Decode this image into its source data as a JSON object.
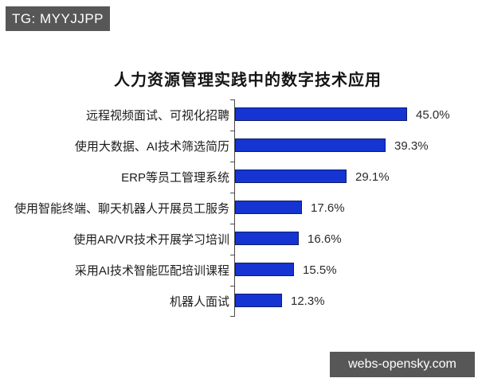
{
  "badges": {
    "top": "TG: MYYJJPP",
    "bottom": "webs-opensky.com"
  },
  "chart_data": {
    "type": "bar",
    "orientation": "horizontal",
    "title": "人力资源管理实践中的数字技术应用",
    "categories": [
      "远程视频面试、可视化招聘",
      "使用大数据、AI技术筛选简历",
      "ERP等员工管理系统",
      "使用智能终端、聊天机器人开展员工服务",
      "使用AR/VR技术开展学习培训",
      "采用AI技术智能匹配培训课程",
      "机器人面试"
    ],
    "values": [
      45.0,
      39.3,
      29.1,
      17.6,
      16.6,
      15.5,
      12.3
    ],
    "value_labels": [
      "45.0%",
      "39.3%",
      "29.1%",
      "17.6%",
      "16.6%",
      "15.5%",
      "12.3%"
    ],
    "xlim": [
      0,
      50
    ],
    "grid": false,
    "legend": false,
    "bar_color": "#1634d2",
    "bar_border_color": "#0c1c6e",
    "axis_color": "#4a4a4a"
  },
  "colors": {
    "background": "#ffffff",
    "badge_bg": "#575757",
    "badge_text": "#ffffff",
    "title_text": "#141414",
    "label_text": "#1c1c1c",
    "value_text": "#2b2b2b"
  }
}
